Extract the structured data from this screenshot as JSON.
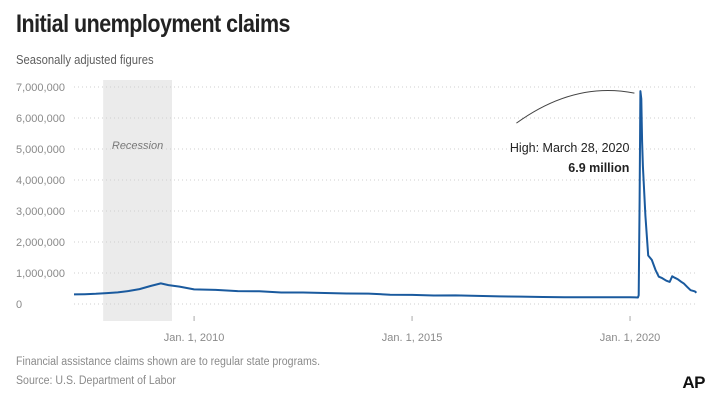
{
  "header": {
    "title": "Initial unemployment claims",
    "subtitle": "Seasonally adjusted figures"
  },
  "footer": {
    "note": "Financial assistance claims shown are to regular state programs.",
    "source": "Source: U.S. Department of Labor",
    "logo": "AP"
  },
  "colors": {
    "line": "#1a5a9e",
    "recession_band": "#ebebeb",
    "grid": "#cfcfcf",
    "text": "#222222"
  },
  "chart_data": {
    "type": "line",
    "title": "Initial unemployment claims",
    "subtitle": "Seasonally adjusted figures",
    "xlabel": "",
    "ylabel": "",
    "x_range": [
      "2007-04-01",
      "2021-07-15"
    ],
    "ylim": [
      0,
      7000000
    ],
    "yticks": [
      0,
      1000000,
      2000000,
      3000000,
      4000000,
      5000000,
      6000000,
      7000000
    ],
    "ytick_labels": [
      "0",
      "1,000,000",
      "2,000,000",
      "3,000,000",
      "4,000,000",
      "5,000,000",
      "6,000,000",
      "7,000,000"
    ],
    "xticks": [
      "2010-01-01",
      "2015-01-01",
      "2020-01-01"
    ],
    "xtick_labels": [
      "Jan. 1, 2010",
      "Jan. 1, 2015",
      "Jan. 1, 2020"
    ],
    "grid": "horizontal dotted",
    "shaded_regions": [
      {
        "label": "Recession",
        "start": "2007-12-01",
        "end": "2009-06-30"
      }
    ],
    "annotation": {
      "date": "2020-03-28",
      "value": 6867000,
      "label": "High: March 28, 2020",
      "value_label": "6.9 million"
    },
    "series": [
      {
        "x": [
          "2007-04-01",
          "2007-07-01",
          "2007-10-01",
          "2008-01-01",
          "2008-04-01",
          "2008-07-01",
          "2008-10-01",
          "2009-01-01",
          "2009-03-28",
          "2009-06-01",
          "2009-09-01",
          "2010-01-01",
          "2010-07-01",
          "2011-01-01",
          "2011-07-01",
          "2012-01-01",
          "2012-07-01",
          "2013-01-01",
          "2013-07-01",
          "2014-01-01",
          "2014-07-01",
          "2015-01-01",
          "2015-07-01",
          "2016-01-01",
          "2016-07-01",
          "2017-01-01",
          "2017-07-01",
          "2018-01-01",
          "2018-07-01",
          "2019-01-01",
          "2019-07-01",
          "2020-01-01",
          "2020-03-07",
          "2020-03-14",
          "2020-03-21",
          "2020-03-28",
          "2020-04-04",
          "2020-04-11",
          "2020-04-18",
          "2020-04-25",
          "2020-05-09",
          "2020-06-01",
          "2020-07-01",
          "2020-08-01",
          "2020-08-29",
          "2020-09-26",
          "2020-10-31",
          "2020-11-28",
          "2020-12-19",
          "2021-01-09",
          "2021-02-06",
          "2021-03-06",
          "2021-03-27",
          "2021-04-24",
          "2021-05-22",
          "2021-06-26",
          "2021-07-10"
        ],
        "values": [
          310000,
          315000,
          330000,
          350000,
          375000,
          420000,
          480000,
          580000,
          665000,
          610000,
          560000,
          470000,
          455000,
          415000,
          410000,
          370000,
          372000,
          355000,
          340000,
          335000,
          300000,
          295000,
          275000,
          278000,
          260000,
          245000,
          240000,
          225000,
          215000,
          215000,
          215000,
          220000,
          211000,
          282000,
          3307000,
          6867000,
          6615000,
          5237000,
          4442000,
          3867000,
          2849000,
          1566000,
          1422000,
          1100000,
          881000,
          837000,
          751000,
          712000,
          892000,
          848000,
          793000,
          712000,
          658000,
          553000,
          444000,
          411000,
          360000
        ]
      }
    ]
  }
}
